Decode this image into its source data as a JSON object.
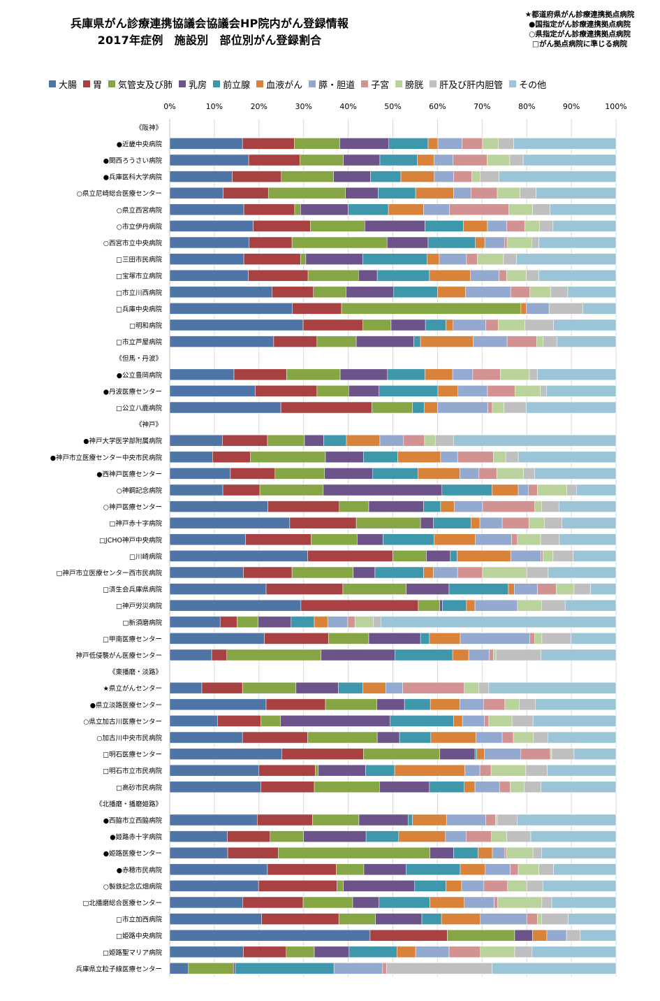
{
  "title_line1": "兵庫県がん診療連携協議会協議会HP院内がん登録情報",
  "title_line2": "2017年症例　施設別　部位別がん登録割合",
  "notes": [
    "★都道府県がん診療連携拠点病院",
    "●国指定がん診療連携拠点病院",
    "○県指定がん診療連携拠点病院",
    "□がん拠点病院に準じる病院"
  ],
  "colors": [
    "#4f75a6",
    "#a84141",
    "#86a646",
    "#6c548a",
    "#3e97aa",
    "#d9833a",
    "#93a9cf",
    "#d29292",
    "#bad29b",
    "#bfbfbf",
    "#9bc5d7"
  ],
  "chart_data": {
    "type": "bar",
    "orientation": "horizontal",
    "stacked": true,
    "percent": true,
    "xlim": [
      0,
      100
    ],
    "xticks": [
      "0%",
      "10%",
      "20%",
      "30%",
      "40%",
      "50%",
      "60%",
      "70%",
      "80%",
      "90%",
      "100%"
    ],
    "grid": true,
    "legend_position": "top",
    "series_names": [
      "大腸",
      "胃",
      "気管支及び肺",
      "乳房",
      "前立腺",
      "血液がん",
      "膵・胆道",
      "子宮",
      "膀胱",
      "肝及び肝内胆管",
      "その他"
    ],
    "rows": [
      {
        "label": "《阪神》",
        "header": true
      },
      {
        "label": "●近畿中央病院",
        "values": [
          16.3,
          11.6,
          10.2,
          11.0,
          8.8,
          2.2,
          5.4,
          4.6,
          3.5,
          3.5,
          22.9
        ]
      },
      {
        "label": "●関西ろうさい病院",
        "values": [
          17.7,
          11.5,
          9.7,
          8.2,
          8.4,
          3.7,
          4.3,
          7.6,
          5.1,
          3.0,
          20.8
        ]
      },
      {
        "label": "●兵庫医科大学病院",
        "values": [
          14.0,
          11.0,
          11.7,
          8.3,
          6.8,
          7.5,
          4.3,
          4.1,
          1.9,
          4.2,
          26.2
        ]
      },
      {
        "label": "○県立尼崎総合医療センター",
        "values": [
          12.0,
          10.1,
          17.3,
          7.3,
          8.4,
          8.5,
          3.9,
          5.9,
          5.1,
          3.6,
          17.9
        ]
      },
      {
        "label": "○県立西宮病院",
        "values": [
          16.6,
          11.4,
          1.3,
          10.7,
          9.0,
          7.9,
          5.8,
          13.3,
          5.3,
          3.9,
          14.8
        ]
      },
      {
        "label": "○市立伊丹病院",
        "values": [
          18.7,
          12.8,
          12.2,
          13.5,
          8.6,
          5.4,
          4.3,
          4.1,
          3.3,
          3.0,
          14.1
        ]
      },
      {
        "label": "○西宮市立中央病院",
        "values": [
          17.8,
          9.6,
          21.3,
          9.2,
          10.6,
          2.1,
          4.4,
          0.6,
          5.5,
          1.6,
          17.3
        ]
      },
      {
        "label": "□三田市民病院",
        "values": [
          16.6,
          12.7,
          1.2,
          12.8,
          14.4,
          2.7,
          6.1,
          2.4,
          5.9,
          2.9,
          22.3
        ]
      },
      {
        "label": "□宝塚市立病院",
        "values": [
          17.6,
          13.4,
          11.3,
          4.2,
          11.7,
          9.2,
          6.4,
          1.7,
          4.4,
          2.8,
          17.3
        ]
      },
      {
        "label": "□市立川西病院",
        "values": [
          22.9,
          9.3,
          7.3,
          10.7,
          9.8,
          6.3,
          10.1,
          4.3,
          4.7,
          3.8,
          10.8
        ]
      },
      {
        "label": "□兵庫中央病院",
        "values": [
          27.5,
          11.0,
          40.2,
          0.0,
          0.0,
          1.2,
          5.1,
          0.0,
          0.0,
          7.6,
          7.4
        ]
      },
      {
        "label": "□明和病院",
        "values": [
          29.9,
          13.4,
          6.3,
          7.7,
          4.6,
          1.6,
          7.3,
          2.8,
          6.0,
          6.4,
          14.0
        ]
      },
      {
        "label": "□市立芦屋病院",
        "values": [
          23.3,
          9.7,
          8.8,
          12.9,
          1.5,
          11.8,
          7.6,
          6.6,
          1.5,
          3.1,
          13.2
        ]
      },
      {
        "label": "《但馬・丹波》",
        "header": true
      },
      {
        "label": "●公立豊岡病院",
        "values": [
          14.4,
          11.8,
          12.0,
          10.6,
          8.4,
          6.2,
          4.5,
          6.2,
          6.5,
          1.8,
          17.6
        ]
      },
      {
        "label": "●丹波医療センター",
        "values": [
          19.2,
          13.8,
          7.1,
          6.8,
          13.2,
          4.5,
          6.6,
          6.2,
          5.6,
          1.4,
          15.6
        ]
      },
      {
        "label": "□公立八鹿病院",
        "values": [
          24.9,
          20.4,
          9.1,
          0.0,
          2.6,
          3.0,
          11.3,
          1.0,
          2.6,
          5.0,
          20.1
        ]
      },
      {
        "label": "《神戸》",
        "header": true
      },
      {
        "label": "●神戸大学医学部附属病院",
        "values": [
          11.8,
          10.1,
          8.3,
          4.3,
          5.1,
          7.5,
          5.3,
          4.7,
          2.4,
          4.1,
          36.4
        ]
      },
      {
        "label": "●神戸市立医療センター中央市民病院",
        "values": [
          9.6,
          8.5,
          16.8,
          8.5,
          7.7,
          9.6,
          3.8,
          8.0,
          2.8,
          2.8,
          21.9
        ]
      },
      {
        "label": "●西神戸医療センター",
        "values": [
          13.6,
          10.0,
          11.1,
          10.8,
          10.1,
          9.4,
          4.3,
          4.0,
          6.0,
          2.5,
          18.2
        ]
      },
      {
        "label": "○神鋼記念病院",
        "values": [
          11.9,
          8.3,
          14.2,
          26.6,
          11.2,
          5.9,
          2.3,
          2.0,
          6.6,
          2.2,
          8.8
        ]
      },
      {
        "label": "○神戸医療センター",
        "values": [
          22.0,
          16.0,
          6.6,
          12.3,
          3.8,
          3.1,
          6.3,
          11.7,
          1.5,
          3.9,
          12.8
        ]
      },
      {
        "label": "□神戸赤十字病院",
        "values": [
          26.9,
          14.9,
          14.4,
          2.9,
          8.4,
          2.0,
          5.0,
          6.0,
          3.5,
          3.9,
          12.1
        ]
      },
      {
        "label": "□JCHO神戸中央病院",
        "values": [
          17.0,
          14.7,
          10.3,
          5.8,
          11.4,
          9.3,
          8.1,
          1.3,
          5.2,
          4.2,
          12.7
        ]
      },
      {
        "label": "□川崎病院",
        "values": [
          30.9,
          19.1,
          7.5,
          5.4,
          1.5,
          12.0,
          6.8,
          0.4,
          2.3,
          4.5,
          9.6
        ]
      },
      {
        "label": "□神戸市立医療センター西市民病院",
        "values": [
          16.5,
          10.9,
          13.7,
          4.9,
          10.9,
          2.2,
          5.4,
          5.6,
          9.9,
          4.8,
          15.2
        ]
      },
      {
        "label": "□済生会兵庫県病院",
        "values": [
          21.6,
          17.2,
          14.2,
          9.6,
          13.3,
          1.3,
          5.2,
          4.2,
          4.0,
          3.7,
          5.7
        ]
      },
      {
        "label": "□神戸労災病院",
        "values": [
          29.4,
          26.3,
          4.8,
          0.6,
          5.4,
          1.9,
          9.5,
          0.0,
          5.4,
          5.3,
          11.4
        ]
      },
      {
        "label": "□新須磨病院",
        "values": [
          11.3,
          3.8,
          4.7,
          7.4,
          5.2,
          3.0,
          4.5,
          1.6,
          4.1,
          1.7,
          52.7
        ]
      },
      {
        "label": "□甲南医療センター",
        "values": [
          21.2,
          14.4,
          9.0,
          11.6,
          2.0,
          6.9,
          15.6,
          1.1,
          1.6,
          6.5,
          10.1
        ]
      },
      {
        "label": "神戸低侵襲がん医療センター",
        "values": [
          9.4,
          3.4,
          21.1,
          16.6,
          12.9,
          3.6,
          4.6,
          0.9,
          0.6,
          10.1,
          16.8
        ]
      },
      {
        "label": "《東播磨・淡路》",
        "header": true
      },
      {
        "label": "★県立がんセンター",
        "values": [
          7.2,
          9.1,
          12.0,
          9.5,
          5.5,
          5.1,
          3.8,
          13.8,
          3.3,
          2.2,
          28.5
        ]
      },
      {
        "label": "●県立淡路医療センター",
        "values": [
          21.6,
          13.3,
          11.5,
          6.2,
          5.8,
          6.6,
          5.3,
          4.8,
          3.2,
          3.6,
          18.1
        ]
      },
      {
        "label": "○県立加古川医療センター",
        "values": [
          10.7,
          9.7,
          4.4,
          24.6,
          14.2,
          2.0,
          4.9,
          1.0,
          5.2,
          4.7,
          18.6
        ]
      },
      {
        "label": "○加古川中央市民病院",
        "values": [
          16.3,
          14.6,
          15.6,
          5.0,
          7.0,
          10.1,
          5.9,
          2.5,
          4.5,
          3.2,
          15.3
        ]
      },
      {
        "label": "□明石医療センター",
        "values": [
          25.1,
          18.3,
          17.1,
          7.9,
          0.4,
          1.7,
          8.1,
          6.7,
          0.3,
          5.0,
          9.4
        ]
      },
      {
        "label": "□明石市立市民病院",
        "values": [
          20.0,
          12.6,
          0.7,
          10.6,
          6.5,
          15.7,
          3.4,
          2.5,
          7.8,
          4.8,
          15.4
        ]
      },
      {
        "label": "□高砂市民病院",
        "values": [
          20.4,
          12.0,
          14.6,
          11.2,
          7.8,
          2.4,
          5.5,
          2.4,
          3.1,
          3.8,
          16.8
        ]
      },
      {
        "label": "《北播磨・播磨姫路》",
        "header": true
      },
      {
        "label": "●西脇市立西脇病院",
        "values": [
          19.6,
          12.4,
          10.4,
          11.0,
          1.0,
          7.6,
          8.8,
          2.2,
          0.4,
          4.5,
          22.1
        ]
      },
      {
        "label": "●姫路赤十字病院",
        "values": [
          12.9,
          9.6,
          7.5,
          14.0,
          7.3,
          10.5,
          4.6,
          5.7,
          3.4,
          5.4,
          19.1
        ]
      },
      {
        "label": "●姫路医療センター",
        "values": [
          13.0,
          11.3,
          34.0,
          5.3,
          5.5,
          3.2,
          2.7,
          0.4,
          6.0,
          1.9,
          16.7
        ]
      },
      {
        "label": "●赤穂市民病院",
        "values": [
          21.9,
          15.4,
          6.2,
          9.5,
          12.1,
          5.6,
          5.6,
          1.8,
          4.6,
          3.3,
          14.0
        ]
      },
      {
        "label": "○製鉄記念広畑病院",
        "values": [
          19.9,
          17.6,
          1.4,
          16.0,
          7.0,
          3.5,
          5.0,
          5.3,
          4.3,
          3.6,
          16.4
        ]
      },
      {
        "label": "□北播磨総合医療センター",
        "values": [
          16.4,
          13.5,
          11.1,
          5.9,
          11.4,
          7.7,
          6.7,
          0.8,
          9.9,
          2.2,
          14.4
        ]
      },
      {
        "label": "□市立加西病院",
        "values": [
          20.6,
          17.3,
          8.2,
          10.4,
          4.4,
          8.7,
          10.4,
          2.4,
          0.9,
          6.0,
          10.7
        ]
      },
      {
        "label": "□姫路中央病院",
        "values": [
          44.9,
          17.3,
          15.1,
          4.0,
          0.0,
          3.2,
          4.4,
          0.0,
          0.0,
          3.1,
          8.0
        ]
      },
      {
        "label": "□姫路聖マリア病院",
        "values": [
          16.5,
          9.6,
          6.3,
          7.8,
          10.7,
          4.2,
          7.5,
          7.0,
          7.7,
          3.9,
          18.8
        ]
      },
      {
        "label": "兵庫県立粒子線医療センター",
        "values": [
          4.2,
          0.0,
          10.1,
          0.4,
          22.1,
          0.0,
          10.9,
          0.9,
          0.0,
          23.6,
          27.8
        ]
      }
    ]
  }
}
